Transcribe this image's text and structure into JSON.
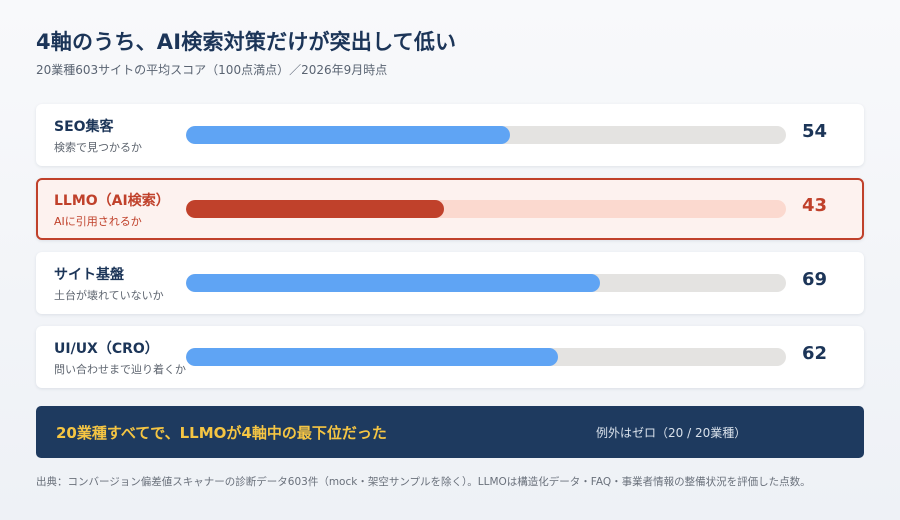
{
  "title": "4軸のうち、AI検索対策だけが突出して低い",
  "subtitle": "20業種603サイトの平均スコア（100点満点）／2026年9月時点",
  "chart_data": {
    "type": "bar",
    "orientation": "horizontal",
    "xlim": [
      0,
      100
    ],
    "categories": [
      "SEO集客",
      "LLMO（AI検索）",
      "サイト基盤",
      "UI/UX（CRO）"
    ],
    "descriptions": [
      "検索で見つかるか",
      "AIに引用されるか",
      "土台が壊れていないか",
      "問い合わせまで辿り着くか"
    ],
    "values": [
      54,
      43,
      69,
      62
    ],
    "highlight_index": 1,
    "colors": {
      "bar": "#5fa4f4",
      "track": "#e4e3e1",
      "highlight": "#c0412b",
      "highlight_track": "#fbd9cf",
      "highlight_bg": "#fdf2ef"
    }
  },
  "banner": {
    "main": "20業種すべてで、LLMOが4軸中の最下位だった",
    "sub": "例外はゼロ（20 / 20業種）",
    "bg_color": "#1e3a5f",
    "main_color": "#f5c543"
  },
  "footer": "出典：コンバージョン偏差値スキャナーの診断データ603件（mock・架空サンプルを除く）。LLMOは構造化データ・FAQ・事業者情報の整備状況を評価した点数。"
}
